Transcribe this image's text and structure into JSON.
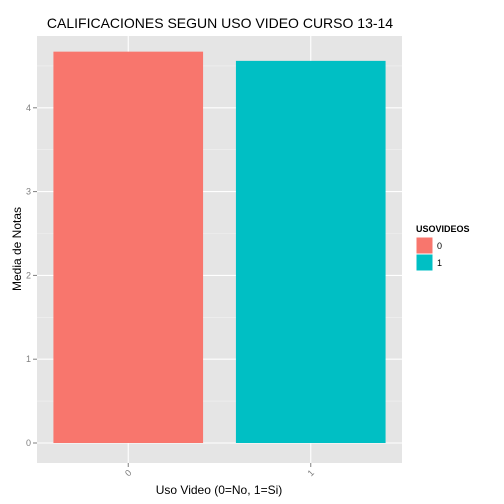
{
  "chart_data": {
    "type": "bar",
    "title": "CALIFICACIONES SEGUN USO VIDEO CURSO 13-14",
    "xlabel": "Uso Video (0=No, 1=Si)",
    "ylabel": "Media de Notas",
    "categories": [
      "0",
      "1"
    ],
    "values": [
      4.67,
      4.56
    ],
    "ylim": [
      0,
      4.9
    ],
    "yticks": [
      0,
      1,
      2,
      3,
      4
    ],
    "grid": true,
    "legend": {
      "title": "USOVIDEOS",
      "placement": "right",
      "entries": [
        "0",
        "1"
      ]
    },
    "colors": {
      "0": "#F8766D",
      "1": "#00BFC4",
      "panel_background": "#E5E5E5",
      "grid_major": "#FFFFFF",
      "grid_minor": "#F2F2F2"
    }
  }
}
